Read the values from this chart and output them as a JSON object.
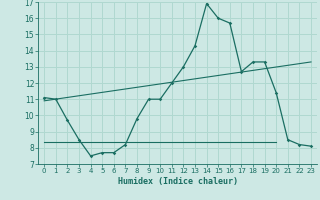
{
  "xlabel": "Humidex (Indice chaleur)",
  "xlim": [
    -0.5,
    23.5
  ],
  "ylim": [
    7,
    17
  ],
  "yticks": [
    7,
    8,
    9,
    10,
    11,
    12,
    13,
    14,
    15,
    16,
    17
  ],
  "xticks": [
    0,
    1,
    2,
    3,
    4,
    5,
    6,
    7,
    8,
    9,
    10,
    11,
    12,
    13,
    14,
    15,
    16,
    17,
    18,
    19,
    20,
    21,
    22,
    23
  ],
  "bg_color": "#cde8e4",
  "line_color": "#1a6e62",
  "grid_color": "#b0d8d0",
  "main_x": [
    0,
    1,
    2,
    3,
    4,
    5,
    6,
    7,
    8,
    9,
    10,
    11,
    12,
    13,
    14,
    15,
    16,
    17,
    18,
    19,
    20,
    21,
    22,
    23
  ],
  "main_y": [
    11.1,
    11.0,
    9.7,
    8.5,
    7.5,
    7.7,
    7.7,
    8.2,
    9.8,
    11.0,
    11.0,
    12.0,
    13.0,
    14.3,
    16.9,
    16.0,
    15.7,
    12.7,
    13.3,
    13.3,
    11.4,
    8.5,
    8.2,
    8.1
  ],
  "line2_x": [
    0,
    23
  ],
  "line2_y": [
    10.9,
    13.3
  ],
  "line3_x": [
    0,
    20
  ],
  "line3_y": [
    8.35,
    8.35
  ]
}
